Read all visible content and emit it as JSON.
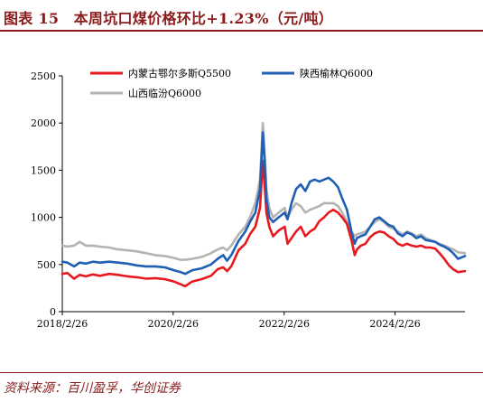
{
  "title": "图表 15　本周坑口煤价格环比+1.23%（元/吨）",
  "source": "资料来源：百川盈孚，华创证券",
  "chart_data": {
    "type": "line",
    "title": "图表 15　本周坑口煤价格环比+1.23%（元/吨）",
    "xlabel": "",
    "ylabel": "",
    "ylim": [
      0,
      2500
    ],
    "yticks": [
      0,
      500,
      1000,
      1500,
      2000,
      2500
    ],
    "xlim": [
      "2018-02-26",
      "2025-05-31"
    ],
    "xtick_labels": [
      "2018/2/26",
      "2020/2/26",
      "2022/2/26",
      "2024/2/26"
    ],
    "xtick_dates": [
      "2018-02-26",
      "2020-02-26",
      "2022-02-26",
      "2024-02-26"
    ],
    "grid": false,
    "legend_position": "top",
    "series": [
      {
        "name": "内蒙古鄂尔多斯Q5500",
        "color": "#e8191e",
        "points": [
          [
            "2018-02-26",
            400
          ],
          [
            "2018-04-01",
            410
          ],
          [
            "2018-05-15",
            350
          ],
          [
            "2018-06-20",
            390
          ],
          [
            "2018-08-01",
            375
          ],
          [
            "2018-09-15",
            395
          ],
          [
            "2018-11-01",
            380
          ],
          [
            "2019-01-01",
            400
          ],
          [
            "2019-03-01",
            390
          ],
          [
            "2019-05-01",
            375
          ],
          [
            "2019-07-01",
            365
          ],
          [
            "2019-09-01",
            350
          ],
          [
            "2019-11-01",
            355
          ],
          [
            "2020-01-01",
            345
          ],
          [
            "2020-03-01",
            320
          ],
          [
            "2020-04-15",
            290
          ],
          [
            "2020-05-15",
            270
          ],
          [
            "2020-07-01",
            320
          ],
          [
            "2020-09-01",
            345
          ],
          [
            "2020-11-01",
            380
          ],
          [
            "2020-12-15",
            450
          ],
          [
            "2021-01-20",
            470
          ],
          [
            "2021-02-15",
            430
          ],
          [
            "2021-03-15",
            480
          ],
          [
            "2021-05-01",
            650
          ],
          [
            "2021-06-15",
            720
          ],
          [
            "2021-07-15",
            820
          ],
          [
            "2021-08-20",
            900
          ],
          [
            "2021-09-20",
            1100
          ],
          [
            "2021-10-08",
            1600
          ],
          [
            "2021-10-20",
            1350
          ],
          [
            "2021-11-01",
            1050
          ],
          [
            "2021-11-20",
            900
          ],
          [
            "2021-12-15",
            800
          ],
          [
            "2022-01-20",
            860
          ],
          [
            "2022-03-01",
            900
          ],
          [
            "2022-03-20",
            720
          ],
          [
            "2022-04-15",
            780
          ],
          [
            "2022-05-15",
            850
          ],
          [
            "2022-06-15",
            900
          ],
          [
            "2022-07-15",
            800
          ],
          [
            "2022-08-15",
            850
          ],
          [
            "2022-09-15",
            880
          ],
          [
            "2022-10-15",
            960
          ],
          [
            "2022-11-15",
            1000
          ],
          [
            "2022-12-15",
            1050
          ],
          [
            "2023-01-15",
            1080
          ],
          [
            "2023-02-15",
            1050
          ],
          [
            "2023-03-15",
            1000
          ],
          [
            "2023-04-15",
            930
          ],
          [
            "2023-05-15",
            760
          ],
          [
            "2023-06-05",
            600
          ],
          [
            "2023-06-20",
            660
          ],
          [
            "2023-07-15",
            700
          ],
          [
            "2023-08-15",
            720
          ],
          [
            "2023-09-15",
            790
          ],
          [
            "2023-10-15",
            830
          ],
          [
            "2023-11-15",
            850
          ],
          [
            "2023-12-15",
            840
          ],
          [
            "2024-01-15",
            800
          ],
          [
            "2024-02-15",
            770
          ],
          [
            "2024-03-15",
            720
          ],
          [
            "2024-04-15",
            700
          ],
          [
            "2024-05-15",
            720
          ],
          [
            "2024-06-15",
            700
          ],
          [
            "2024-07-15",
            690
          ],
          [
            "2024-08-15",
            700
          ],
          [
            "2024-09-15",
            680
          ],
          [
            "2024-10-15",
            680
          ],
          [
            "2024-11-15",
            670
          ],
          [
            "2024-12-15",
            620
          ],
          [
            "2025-01-15",
            560
          ],
          [
            "2025-02-15",
            490
          ],
          [
            "2025-03-15",
            450
          ],
          [
            "2025-04-15",
            420
          ],
          [
            "2025-05-31",
            430
          ]
        ]
      },
      {
        "name": "陕西榆林Q6000",
        "color": "#1f5fb4",
        "points": [
          [
            "2018-02-26",
            530
          ],
          [
            "2018-04-01",
            520
          ],
          [
            "2018-05-15",
            480
          ],
          [
            "2018-06-20",
            520
          ],
          [
            "2018-08-01",
            510
          ],
          [
            "2018-09-15",
            530
          ],
          [
            "2018-11-01",
            520
          ],
          [
            "2019-01-01",
            530
          ],
          [
            "2019-03-01",
            520
          ],
          [
            "2019-05-01",
            510
          ],
          [
            "2019-07-01",
            490
          ],
          [
            "2019-09-01",
            480
          ],
          [
            "2019-11-01",
            480
          ],
          [
            "2020-01-01",
            470
          ],
          [
            "2020-03-01",
            440
          ],
          [
            "2020-04-15",
            420
          ],
          [
            "2020-05-15",
            400
          ],
          [
            "2020-07-01",
            440
          ],
          [
            "2020-09-01",
            460
          ],
          [
            "2020-11-01",
            500
          ],
          [
            "2020-12-15",
            560
          ],
          [
            "2021-01-20",
            600
          ],
          [
            "2021-02-15",
            540
          ],
          [
            "2021-03-15",
            600
          ],
          [
            "2021-05-01",
            750
          ],
          [
            "2021-06-15",
            850
          ],
          [
            "2021-07-15",
            950
          ],
          [
            "2021-08-20",
            1050
          ],
          [
            "2021-09-20",
            1300
          ],
          [
            "2021-10-08",
            1900
          ],
          [
            "2021-10-20",
            1600
          ],
          [
            "2021-11-01",
            1200
          ],
          [
            "2021-11-20",
            1000
          ],
          [
            "2021-12-15",
            950
          ],
          [
            "2022-01-20",
            1000
          ],
          [
            "2022-03-01",
            1050
          ],
          [
            "2022-03-20",
            980
          ],
          [
            "2022-04-15",
            1150
          ],
          [
            "2022-05-15",
            1300
          ],
          [
            "2022-06-15",
            1350
          ],
          [
            "2022-07-15",
            1280
          ],
          [
            "2022-08-15",
            1380
          ],
          [
            "2022-09-15",
            1400
          ],
          [
            "2022-10-15",
            1380
          ],
          [
            "2022-11-15",
            1400
          ],
          [
            "2022-12-15",
            1420
          ],
          [
            "2023-01-15",
            1380
          ],
          [
            "2023-02-15",
            1320
          ],
          [
            "2023-03-15",
            1200
          ],
          [
            "2023-04-15",
            1080
          ],
          [
            "2023-05-15",
            850
          ],
          [
            "2023-06-05",
            720
          ],
          [
            "2023-06-20",
            780
          ],
          [
            "2023-07-15",
            800
          ],
          [
            "2023-08-15",
            820
          ],
          [
            "2023-09-15",
            900
          ],
          [
            "2023-10-15",
            980
          ],
          [
            "2023-11-15",
            1000
          ],
          [
            "2023-12-15",
            960
          ],
          [
            "2024-01-15",
            920
          ],
          [
            "2024-02-15",
            900
          ],
          [
            "2024-03-15",
            830
          ],
          [
            "2024-04-15",
            800
          ],
          [
            "2024-05-15",
            840
          ],
          [
            "2024-06-15",
            820
          ],
          [
            "2024-07-15",
            780
          ],
          [
            "2024-08-15",
            800
          ],
          [
            "2024-09-15",
            760
          ],
          [
            "2024-10-15",
            750
          ],
          [
            "2024-11-15",
            740
          ],
          [
            "2024-12-15",
            710
          ],
          [
            "2025-01-15",
            690
          ],
          [
            "2025-02-15",
            660
          ],
          [
            "2025-03-15",
            620
          ],
          [
            "2025-04-15",
            560
          ],
          [
            "2025-05-31",
            590
          ]
        ]
      },
      {
        "name": "山西临汾Q6000",
        "color": "#b3b3b3",
        "points": [
          [
            "2018-02-26",
            700
          ],
          [
            "2018-04-01",
            690
          ],
          [
            "2018-05-15",
            700
          ],
          [
            "2018-06-20",
            740
          ],
          [
            "2018-08-01",
            700
          ],
          [
            "2018-09-15",
            700
          ],
          [
            "2018-11-01",
            690
          ],
          [
            "2019-01-01",
            680
          ],
          [
            "2019-03-01",
            660
          ],
          [
            "2019-05-01",
            650
          ],
          [
            "2019-07-01",
            640
          ],
          [
            "2019-09-01",
            620
          ],
          [
            "2019-11-01",
            600
          ],
          [
            "2020-01-01",
            590
          ],
          [
            "2020-03-01",
            570
          ],
          [
            "2020-04-15",
            550
          ],
          [
            "2020-05-15",
            550
          ],
          [
            "2020-07-01",
            560
          ],
          [
            "2020-09-01",
            580
          ],
          [
            "2020-11-01",
            620
          ],
          [
            "2020-12-15",
            660
          ],
          [
            "2021-01-20",
            680
          ],
          [
            "2021-02-15",
            650
          ],
          [
            "2021-03-15",
            700
          ],
          [
            "2021-05-01",
            820
          ],
          [
            "2021-06-15",
            900
          ],
          [
            "2021-07-15",
            1000
          ],
          [
            "2021-08-20",
            1150
          ],
          [
            "2021-09-20",
            1400
          ],
          [
            "2021-10-08",
            2000
          ],
          [
            "2021-10-20",
            1700
          ],
          [
            "2021-11-01",
            1300
          ],
          [
            "2021-11-20",
            1100
          ],
          [
            "2021-12-15",
            1000
          ],
          [
            "2022-01-20",
            1050
          ],
          [
            "2022-03-01",
            1100
          ],
          [
            "2022-03-20",
            1000
          ],
          [
            "2022-04-15",
            1080
          ],
          [
            "2022-05-15",
            1150
          ],
          [
            "2022-06-15",
            1120
          ],
          [
            "2022-07-15",
            1050
          ],
          [
            "2022-08-15",
            1080
          ],
          [
            "2022-09-15",
            1100
          ],
          [
            "2022-10-15",
            1120
          ],
          [
            "2022-11-15",
            1150
          ],
          [
            "2022-12-15",
            1150
          ],
          [
            "2023-01-15",
            1150
          ],
          [
            "2023-02-15",
            1120
          ],
          [
            "2023-03-15",
            1050
          ],
          [
            "2023-04-15",
            950
          ],
          [
            "2023-05-15",
            850
          ],
          [
            "2023-06-05",
            800
          ],
          [
            "2023-06-20",
            820
          ],
          [
            "2023-07-15",
            830
          ],
          [
            "2023-08-15",
            850
          ],
          [
            "2023-09-15",
            900
          ],
          [
            "2023-10-15",
            950
          ],
          [
            "2023-11-15",
            980
          ],
          [
            "2023-12-15",
            950
          ],
          [
            "2024-01-15",
            900
          ],
          [
            "2024-02-15",
            880
          ],
          [
            "2024-03-15",
            850
          ],
          [
            "2024-04-15",
            820
          ],
          [
            "2024-05-15",
            850
          ],
          [
            "2024-06-15",
            830
          ],
          [
            "2024-07-15",
            800
          ],
          [
            "2024-08-15",
            820
          ],
          [
            "2024-09-15",
            780
          ],
          [
            "2024-10-15",
            760
          ],
          [
            "2024-11-15",
            740
          ],
          [
            "2024-12-15",
            720
          ],
          [
            "2025-01-15",
            700
          ],
          [
            "2025-02-15",
            680
          ],
          [
            "2025-03-15",
            660
          ],
          [
            "2025-04-15",
            630
          ],
          [
            "2025-05-31",
            620
          ]
        ]
      }
    ]
  }
}
